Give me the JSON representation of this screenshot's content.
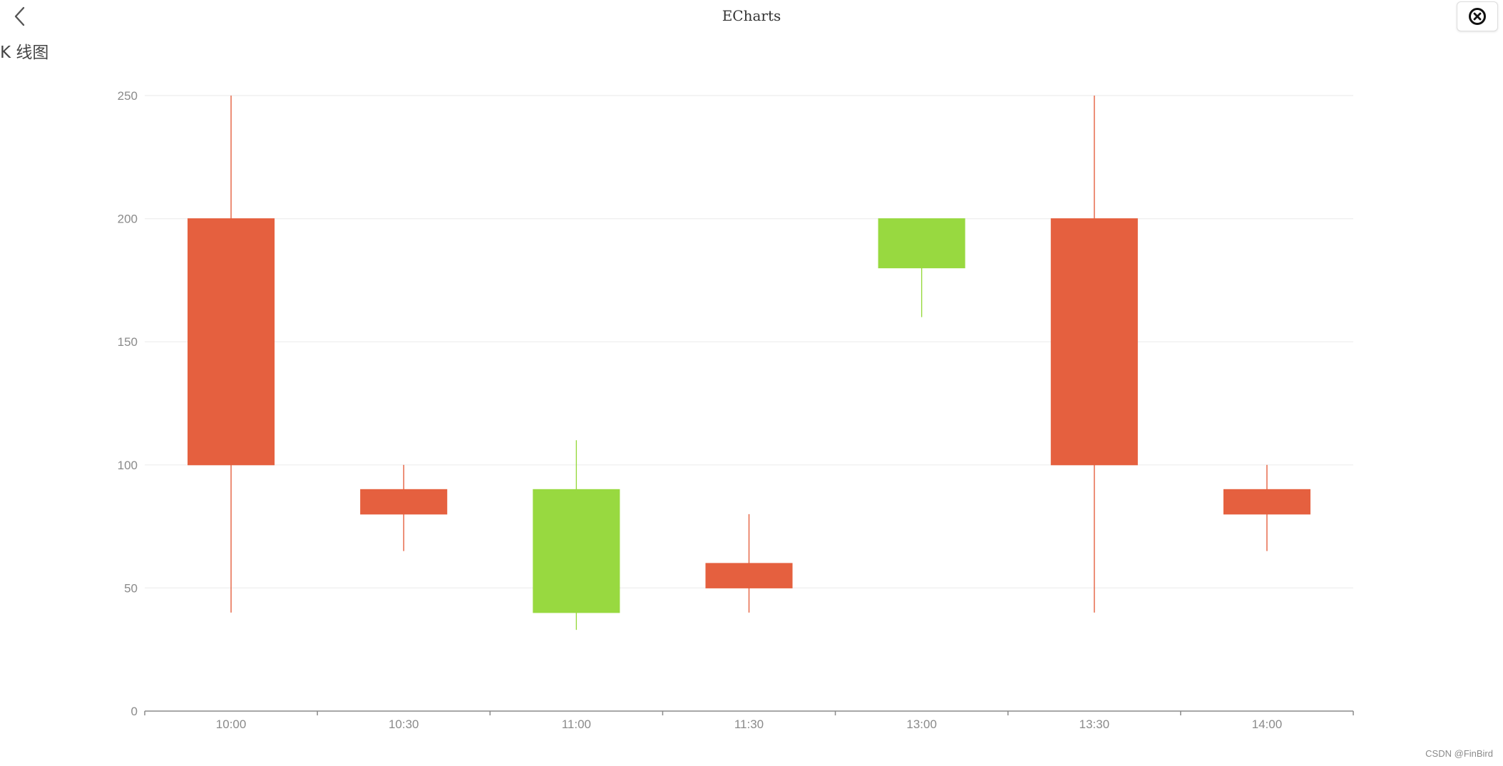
{
  "app": {
    "title": "ECharts",
    "back_icon": "chevron-left-icon",
    "close_icon": "close-circle-icon"
  },
  "chart_heading": "K 线图",
  "watermark": "CSDN @FinBird",
  "colors": {
    "up": "#e5603f",
    "down": "#98d940",
    "axis": "#8a8a8a",
    "grid": "#eeeeee",
    "tick_text": "#8a8a8a"
  },
  "chart_data": {
    "type": "candlestick",
    "categories": [
      "10:00",
      "10:30",
      "11:00",
      "11:30",
      "13:00",
      "13:30",
      "14:00"
    ],
    "candles": [
      {
        "x": "10:00",
        "open": 100,
        "close": 200,
        "low": 40,
        "high": 250
      },
      {
        "x": "10:30",
        "open": 80,
        "close": 90,
        "low": 65,
        "high": 100
      },
      {
        "x": "11:00",
        "open": 90,
        "close": 40,
        "low": 33,
        "high": 110
      },
      {
        "x": "11:30",
        "open": 50,
        "close": 60,
        "low": 40,
        "high": 80
      },
      {
        "x": "13:00",
        "open": 200,
        "close": 180,
        "low": 160,
        "high": 200
      },
      {
        "x": "13:30",
        "open": 100,
        "close": 200,
        "low": 40,
        "high": 250
      },
      {
        "x": "14:00",
        "open": 80,
        "close": 90,
        "low": 65,
        "high": 100
      }
    ],
    "y_ticks": [
      0,
      50,
      100,
      150,
      200,
      250
    ],
    "ylim": [
      0,
      250
    ],
    "grid": true
  }
}
